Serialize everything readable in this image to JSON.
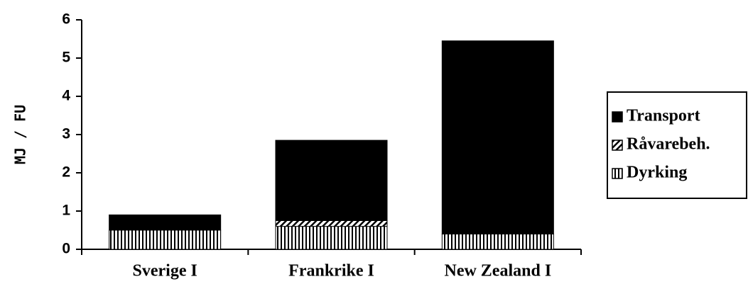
{
  "chart_data": {
    "type": "stacked_bar",
    "y_label": "MJ / FU",
    "categories": [
      "Sverige I",
      "Frankrike I",
      "New Zealand I"
    ],
    "series": [
      {
        "name": "Dyrking",
        "color": "#000000",
        "pattern": "vertical",
        "values": [
          0.5,
          0.6,
          0.4
        ]
      },
      {
        "name": "Råvarebeh.",
        "color": "#000000",
        "pattern": "diagonal",
        "values": [
          0,
          0.15,
          0
        ]
      },
      {
        "name": "Transport",
        "color": "#000000",
        "pattern": "solid",
        "values": [
          0.4,
          2.1,
          5.05
        ]
      }
    ],
    "ylim": [
      0,
      6
    ],
    "yticks": [
      0,
      1,
      2,
      3,
      4,
      5,
      6
    ],
    "grid": false,
    "legend": "right"
  }
}
